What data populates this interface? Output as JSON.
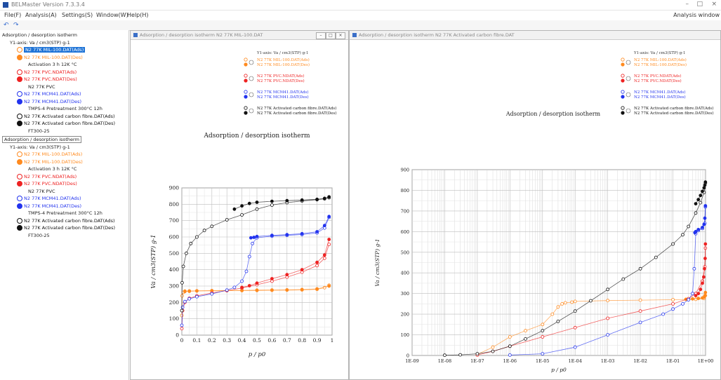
{
  "app": {
    "title": "BELMaster Version 7.3.3.4"
  },
  "window_controls": {
    "minimize": "–",
    "maximize": "□",
    "close": "×"
  },
  "menu": {
    "items": [
      "File(F)",
      "Analysis(A)",
      "Settings(S)",
      "Window(W)",
      "Help(H)"
    ],
    "analysis_window": "Analysis window"
  },
  "toolbar": {
    "undo": "↶",
    "redo": "↷"
  },
  "tree": {
    "group1": {
      "title": "Adsorption / desorption isotherm",
      "axis": "Y1-axis: Va / cm3(STP) g-1"
    },
    "group2": {
      "title": "Adsorption / desorption isotherm",
      "axis": "Y1-axis: Va / cm3(STP) g-1"
    },
    "rows": [
      {
        "label": "N2 77K MIL-100.DAT(Ads)",
        "color": "#ff8a1f",
        "filled": false
      },
      {
        "label": "N2 77K MIL-100.DAT(Des)",
        "color": "#ff8a1f",
        "filled": true
      },
      {
        "label": "Activation 3 h 12K °C",
        "color": "",
        "filled": false
      },
      {
        "label": "N2 77K PVC.NDAT(Ads)",
        "color": "#ee2222",
        "filled": false
      },
      {
        "label": "N2 77K PVC.NDAT(Des)",
        "color": "#ee2222",
        "filled": true
      },
      {
        "label": "N2 77K PVC",
        "color": "",
        "filled": false
      },
      {
        "label": "N2 77K MCM41.DAT(Ads)",
        "color": "#2233ee",
        "filled": false
      },
      {
        "label": "N2 77K MCM41.DAT(Des)",
        "color": "#2233ee",
        "filled": true
      },
      {
        "label": "TMPS-4    Pretreatment 300°C  12h",
        "color": "",
        "filled": false
      },
      {
        "label": "N2 77K Activated carbon fibre.DAT(Ads)",
        "color": "#111111",
        "filled": false
      },
      {
        "label": "N2 77K Activated carbon fibre.DAT(Des)",
        "color": "#111111",
        "filled": true
      },
      {
        "label": "FT300-25",
        "color": "",
        "filled": false
      }
    ]
  },
  "panels": {
    "left": {
      "title": "Adsorption / desorption isotherm N2 77K MIL-100.DAT"
    },
    "right": {
      "title": "Adsorption / desorption isotherm N2 77K Activated carbon fibre.DAT"
    },
    "buttons": [
      "–",
      "□",
      "×"
    ]
  },
  "legend": {
    "axis_label": "Y1-axis: Va / cm3(STP) g-1",
    "entries": [
      {
        "label": "N2 77K MIL-100.DAT(Ads)",
        "color": "#ff8a1f",
        "filled": false
      },
      {
        "label": "N2 77K MIL-100.DAT(Des)",
        "color": "#ff8a1f",
        "filled": true
      },
      {
        "label": "N2 77K PVC.NDAT(Ads)",
        "color": "#ee2222",
        "filled": false
      },
      {
        "label": "N2 77K PVC.NDAT(Des)",
        "color": "#ee2222",
        "filled": true
      },
      {
        "label": "N2 77K MCM41.DAT(Ads)",
        "color": "#2233ee",
        "filled": false
      },
      {
        "label": "N2 77K MCM41.DAT(Des)",
        "color": "#2233ee",
        "filled": true
      },
      {
        "label": "N2 77K Activated carbon fibre.DAT(Ads)",
        "color": "#111111",
        "filled": false
      },
      {
        "label": "N2 77K Activated carbon fibre.DAT(Des)",
        "color": "#111111",
        "filled": true
      }
    ]
  },
  "chart_data": [
    {
      "type": "scatter",
      "title": "Adsorption / desorption isotherm",
      "xlabel": "p / p0",
      "ylabel": "Va / cm3(STP) g-1",
      "xscale": "linear",
      "xlim": [
        0,
        1
      ],
      "ylim": [
        0,
        900
      ],
      "xticks": [
        0,
        0.1,
        0.2,
        0.3,
        0.4,
        0.5,
        0.6,
        0.7,
        0.8,
        0.9,
        1
      ],
      "xtick_labels": [
        "0",
        "0.1",
        "0.2",
        "0.3",
        "0.4",
        "0.5",
        "0.6",
        "0.7",
        "0.8",
        "0.9",
        "1"
      ],
      "yticks": [
        0,
        100,
        200,
        300,
        400,
        500,
        600,
        700,
        800,
        900
      ],
      "grid": true,
      "series": [
        {
          "name": "N2 77K MIL-100.DAT(Ads)",
          "color": "#ff8a1f",
          "filled": false,
          "x": [
            0.0,
            0.002,
            0.01,
            0.02,
            0.05,
            0.1,
            0.2,
            0.3,
            0.4,
            0.5,
            0.6,
            0.7,
            0.8,
            0.9,
            0.95,
            0.98
          ],
          "y": [
            120,
            240,
            262,
            266,
            268,
            270,
            271,
            272,
            272,
            273,
            274,
            275,
            276,
            280,
            290,
            305
          ]
        },
        {
          "name": "N2 77K MIL-100.DAT(Des)",
          "color": "#ff8a1f",
          "filled": true,
          "x": [
            0.98,
            0.9,
            0.8,
            0.7,
            0.6,
            0.5,
            0.4,
            0.3,
            0.2,
            0.1,
            0.05,
            0.02
          ],
          "y": [
            300,
            283,
            279,
            277,
            276,
            275,
            274,
            273,
            272,
            271,
            270,
            269
          ]
        },
        {
          "name": "N2 77K PVC.NDAT(Ads)",
          "color": "#ee2222",
          "filled": false,
          "x": [
            0.0,
            0.005,
            0.02,
            0.05,
            0.1,
            0.2,
            0.3,
            0.4,
            0.5,
            0.6,
            0.7,
            0.8,
            0.9,
            0.95,
            0.98
          ],
          "y": [
            40,
            150,
            200,
            225,
            240,
            258,
            272,
            288,
            308,
            330,
            355,
            385,
            425,
            470,
            555
          ]
        },
        {
          "name": "N2 77K PVC.NDAT(Des)",
          "color": "#ee2222",
          "filled": true,
          "x": [
            0.98,
            0.95,
            0.9,
            0.8,
            0.7,
            0.6,
            0.5,
            0.45,
            0.4
          ],
          "y": [
            585,
            490,
            445,
            400,
            370,
            345,
            318,
            302,
            292
          ]
        },
        {
          "name": "N2 77K MCM41.DAT(Ads)",
          "color": "#2233ee",
          "filled": false,
          "x": [
            0.0,
            0.005,
            0.02,
            0.05,
            0.1,
            0.2,
            0.3,
            0.35,
            0.4,
            0.43,
            0.45,
            0.47,
            0.5,
            0.6,
            0.7,
            0.8,
            0.9,
            0.95,
            0.98
          ],
          "y": [
            60,
            170,
            205,
            222,
            235,
            252,
            275,
            292,
            330,
            390,
            480,
            560,
            595,
            605,
            610,
            615,
            625,
            655,
            720
          ]
        },
        {
          "name": "N2 77K MCM41.DAT(Des)",
          "color": "#2233ee",
          "filled": true,
          "x": [
            0.98,
            0.95,
            0.9,
            0.8,
            0.7,
            0.6,
            0.5,
            0.48,
            0.46
          ],
          "y": [
            725,
            670,
            632,
            620,
            614,
            610,
            603,
            598,
            595
          ]
        },
        {
          "name": "N2 77K Activated carbon fibre.DAT(Ads)",
          "color": "#111111",
          "filled": false,
          "x": [
            0.0,
            0.002,
            0.01,
            0.03,
            0.06,
            0.1,
            0.15,
            0.2,
            0.3,
            0.4,
            0.5,
            0.6,
            0.7,
            0.8,
            0.9,
            0.95,
            0.98
          ],
          "y": [
            150,
            320,
            420,
            500,
            560,
            600,
            640,
            665,
            705,
            735,
            770,
            795,
            810,
            820,
            828,
            833,
            840
          ]
        },
        {
          "name": "N2 77K Activated carbon fibre.DAT(Des)",
          "color": "#111111",
          "filled": true,
          "x": [
            0.98,
            0.95,
            0.9,
            0.8,
            0.7,
            0.6,
            0.5,
            0.45,
            0.4,
            0.35
          ],
          "y": [
            845,
            836,
            830,
            826,
            822,
            818,
            812,
            805,
            790,
            770
          ]
        }
      ]
    },
    {
      "type": "scatter",
      "title": "Adsorption / desorption isotherm",
      "xlabel": "p / p0",
      "ylabel": "Va / cm3(STP) g-1",
      "xscale": "log",
      "xlim": [
        1e-09,
        1
      ],
      "ylim": [
        0,
        900
      ],
      "xticks": [
        1e-09,
        1e-08,
        1e-07,
        1e-06,
        1e-05,
        0.0001,
        0.001,
        0.01,
        0.1,
        1
      ],
      "xtick_labels": [
        "1E-09",
        "1E-08",
        "1E-07",
        "1E-06",
        "1E-05",
        "1E-04",
        "1E-03",
        "1E-02",
        "1E-01",
        "1E+00"
      ],
      "yticks": [
        0,
        100,
        200,
        300,
        400,
        500,
        600,
        700,
        800,
        900
      ],
      "grid": true,
      "series": [
        {
          "name": "N2 77K MIL-100.DAT(Ads)",
          "color": "#ff8a1f",
          "filled": false,
          "x": [
            1e-07,
            3e-07,
            1e-06,
            3e-06,
            1e-05,
            2e-05,
            3e-05,
            4e-05,
            5e-05,
            8e-05,
            0.0001,
            0.001,
            0.01,
            0.1,
            0.5,
            0.9,
            0.99
          ],
          "y": [
            5,
            40,
            90,
            120,
            150,
            200,
            235,
            250,
            255,
            258,
            262,
            266,
            268,
            270,
            272,
            276,
            290
          ]
        },
        {
          "name": "N2 77K MIL-100.DAT(Des)",
          "color": "#ff8a1f",
          "filled": true,
          "x": [
            0.99,
            0.95,
            0.9,
            0.8,
            0.6,
            0.4,
            0.25
          ],
          "y": [
            305,
            290,
            282,
            279,
            276,
            274,
            272
          ]
        },
        {
          "name": "N2 77K PVC.NDAT(Ads)",
          "color": "#ee2222",
          "filled": false,
          "x": [
            1e-07,
            3e-07,
            1e-06,
            1e-05,
            0.0001,
            0.001,
            0.01,
            0.1,
            0.3,
            0.5,
            0.8,
            0.95,
            0.99
          ],
          "y": [
            2,
            20,
            45,
            90,
            135,
            180,
            215,
            250,
            275,
            300,
            360,
            430,
            520
          ]
        },
        {
          "name": "N2 77K PVC.NDAT(Des)",
          "color": "#ee2222",
          "filled": true,
          "x": [
            0.99,
            0.97,
            0.93,
            0.88,
            0.8,
            0.7,
            0.6,
            0.5
          ],
          "y": [
            540,
            470,
            420,
            380,
            350,
            320,
            300,
            290
          ]
        },
        {
          "name": "N2 77K MCM41.DAT(Ads)",
          "color": "#2233ee",
          "filled": false,
          "x": [
            1e-06,
            1e-05,
            0.0001,
            0.001,
            0.01,
            0.05,
            0.1,
            0.2,
            0.3,
            0.4,
            0.45,
            0.5,
            0.6,
            0.8,
            0.95,
            0.99
          ],
          "y": [
            2,
            8,
            40,
            100,
            160,
            200,
            225,
            250,
            270,
            300,
            420,
            590,
            605,
            615,
            640,
            720
          ]
        },
        {
          "name": "N2 77K MCM41.DAT(Des)",
          "color": "#2233ee",
          "filled": true,
          "x": [
            0.99,
            0.95,
            0.9,
            0.8,
            0.6,
            0.5,
            0.47
          ],
          "y": [
            725,
            665,
            635,
            620,
            610,
            600,
            595
          ]
        },
        {
          "name": "N2 77K Activated carbon fibre.DAT(Ads)",
          "color": "#111111",
          "filled": false,
          "x": [
            1e-08,
            3e-08,
            1e-07,
            3e-07,
            1e-06,
            3e-06,
            1e-05,
            3e-05,
            0.0001,
            0.0003,
            0.001,
            0.003,
            0.01,
            0.03,
            0.1,
            0.2,
            0.3,
            0.5,
            0.7,
            0.9,
            0.99
          ],
          "y": [
            1,
            3,
            8,
            20,
            45,
            80,
            120,
            165,
            215,
            265,
            320,
            370,
            420,
            475,
            540,
            585,
            625,
            690,
            740,
            790,
            835
          ]
        },
        {
          "name": "N2 77K Activated carbon fibre.DAT(Des)",
          "color": "#111111",
          "filled": true,
          "x": [
            0.99,
            0.95,
            0.9,
            0.8,
            0.7,
            0.6,
            0.5
          ],
          "y": [
            840,
            825,
            812,
            795,
            775,
            755,
            735
          ]
        }
      ]
    }
  ]
}
